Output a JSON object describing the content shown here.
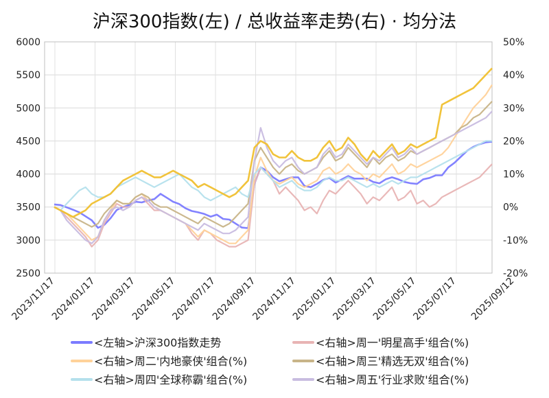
{
  "chart_data": {
    "type": "line",
    "title": "沪深300指数(左)  /  总收益率走势(右) · 均分法",
    "y_left": {
      "min": 2500,
      "max": 6000,
      "ticks": [
        "6000",
        "5500",
        "5000",
        "4500",
        "4000",
        "3500",
        "3000",
        "2500"
      ]
    },
    "y_right": {
      "min": -20,
      "max": 50,
      "ticks": [
        "50%",
        "40%",
        "30%",
        "20%",
        "10%",
        "0%",
        "-10%",
        "-20%"
      ],
      "negative_color": "#22cc22"
    },
    "x_ticks": [
      "2023/11/17",
      "2024/01/17",
      "2024/03/17",
      "2024/05/17",
      "2024/07/17",
      "2024/09/17",
      "2024/11/17",
      "2025/01/17",
      "2025/03/17",
      "2025/05/17",
      "2025/07/17",
      "2025/09/12"
    ],
    "last_tick_color": "#ee2222",
    "grid": true,
    "legend_position": "bottom",
    "series": [
      {
        "name": "<左轴>沪深300指数走势",
        "axis": "left",
        "color": "#7b7bff",
        "values": [
          3540,
          3530,
          3495,
          3460,
          3420,
          3360,
          3300,
          3185,
          3230,
          3330,
          3455,
          3500,
          3530,
          3580,
          3570,
          3600,
          3620,
          3700,
          3640,
          3580,
          3545,
          3480,
          3440,
          3420,
          3395,
          3355,
          3385,
          3320,
          3310,
          3250,
          3190,
          3180,
          3850,
          4100,
          4050,
          3950,
          3890,
          3920,
          3950,
          3950,
          3820,
          3800,
          3850,
          3910,
          3940,
          3870,
          3920,
          3970,
          3930,
          3930,
          3930,
          3880,
          3860,
          3920,
          3950,
          3920,
          3880,
          3860,
          3850,
          3920,
          3940,
          3980,
          3980,
          4100,
          4170,
          4260,
          4350,
          4410,
          4450,
          4480,
          4490
        ]
      },
      {
        "name": "<右轴>周一'明星高手'组合(%)",
        "axis": "right",
        "color": "#e8b4b4",
        "values": [
          0,
          -1,
          -3,
          -5,
          -7,
          -9,
          -12,
          -10,
          -5,
          -2,
          1,
          0,
          0,
          2,
          3,
          1,
          -1,
          -1,
          -2,
          -3,
          -4,
          -5,
          -8,
          -10,
          -7,
          -8,
          -10,
          -11,
          -12,
          -12,
          -11,
          -10,
          7,
          12,
          10,
          8,
          4,
          6,
          4,
          2,
          -1,
          0,
          -2,
          2,
          5,
          4,
          6,
          8,
          6,
          4,
          1,
          3,
          2,
          4,
          6,
          2,
          3,
          5,
          1,
          2,
          0,
          1,
          3,
          4,
          5,
          6,
          7,
          8,
          9,
          11,
          13
        ]
      },
      {
        "name": "<右轴>周二'内地豪侠'组合(%)",
        "axis": "right",
        "color": "#ffd29a",
        "values": [
          0,
          -1,
          -2,
          -4,
          -6,
          -8,
          -10,
          -9,
          -4,
          -1,
          2,
          1,
          1,
          3,
          4,
          2,
          0,
          -1,
          -2,
          -3,
          -4,
          -5,
          -7,
          -9,
          -7,
          -8,
          -9,
          -10,
          -11,
          -11,
          -9,
          -7,
          9,
          15,
          11,
          8,
          7,
          8,
          9,
          7,
          6,
          7,
          8,
          11,
          12,
          10,
          11,
          13,
          11,
          10,
          8,
          10,
          9,
          11,
          13,
          10,
          11,
          13,
          12,
          13,
          14,
          15,
          16,
          18,
          21,
          24,
          27,
          30,
          32,
          34,
          37
        ]
      },
      {
        "name": "<右轴>周三'精选无双'组合(%)",
        "axis": "right",
        "color": "#c8b488",
        "values": [
          0,
          -1,
          -2,
          -3,
          -4,
          -5,
          -6,
          -5,
          -2,
          0,
          2,
          1,
          1,
          3,
          4,
          3,
          1,
          0,
          0,
          -1,
          -2,
          -3,
          -4,
          -5,
          -3,
          -4,
          -5,
          -6,
          -5,
          -3,
          -1,
          1,
          14,
          18,
          15,
          12,
          10,
          12,
          13,
          11,
          10,
          11,
          12,
          15,
          17,
          14,
          15,
          18,
          16,
          14,
          12,
          15,
          13,
          15,
          16,
          14,
          15,
          17,
          16,
          17,
          18,
          19,
          20,
          21,
          22,
          24,
          25,
          27,
          28,
          30,
          32
        ]
      },
      {
        "name": "<右轴>周四'全球称霸'组合(%)",
        "axis": "right",
        "color": "#b4e0ec",
        "values": [
          0,
          -1,
          1,
          3,
          5,
          6,
          4,
          3,
          3,
          4,
          6,
          7,
          8,
          9,
          8,
          7,
          6,
          7,
          8,
          9,
          10,
          8,
          6,
          5,
          3,
          2,
          3,
          4,
          5,
          6,
          4,
          3,
          10,
          12,
          10,
          8,
          6,
          7,
          8,
          6,
          5,
          5,
          6,
          8,
          9,
          8,
          8,
          9,
          8,
          7,
          6,
          7,
          6,
          7,
          8,
          7,
          8,
          9,
          9,
          10,
          11,
          12,
          13,
          14,
          15,
          16,
          17,
          18,
          19,
          20,
          20
        ]
      },
      {
        "name": "<右轴>周五'行业求败'组合(%)",
        "axis": "right",
        "color": "#c8bce0",
        "values": [
          0,
          -1,
          -4,
          -6,
          -8,
          -10,
          -11,
          -9,
          -4,
          -1,
          0,
          -1,
          0,
          2,
          3,
          2,
          0,
          -1,
          -2,
          -3,
          -4,
          -5,
          -6,
          -7,
          -5,
          -6,
          -7,
          -8,
          -8,
          -7,
          -5,
          -3,
          14,
          24,
          18,
          14,
          12,
          14,
          15,
          12,
          10,
          11,
          12,
          16,
          18,
          15,
          16,
          19,
          17,
          15,
          13,
          15,
          14,
          16,
          18,
          15,
          16,
          18,
          16,
          17,
          18,
          19,
          20,
          21,
          22,
          23,
          24,
          25,
          26,
          27,
          29
        ]
      },
      {
        "name": "",
        "axis": "right",
        "color": "#f0c030",
        "values": [
          0,
          -1,
          -2,
          -3,
          -2,
          -1,
          1,
          2,
          3,
          4,
          6,
          8,
          9,
          10,
          11,
          10,
          9,
          9,
          10,
          11,
          10,
          9,
          8,
          6,
          7,
          6,
          5,
          4,
          3,
          4,
          6,
          8,
          18,
          20,
          19,
          16,
          15,
          15,
          17,
          15,
          14,
          14,
          15,
          18,
          20,
          17,
          18,
          21,
          19,
          16,
          14,
          17,
          15,
          17,
          19,
          16,
          17,
          19,
          18,
          19,
          20,
          21,
          31,
          32,
          33,
          34,
          35,
          36,
          38,
          40,
          42
        ]
      }
    ],
    "legend": [
      "<左轴>沪深300指数走势",
      "<右轴>周一'明星高手'组合(%)",
      "<右轴>周二'内地豪侠'组合(%)",
      "<右轴>周三'精选无双'组合(%)",
      "<右轴>周四'全球称霸'组合(%)",
      "<右轴>周五'行业求败'组合(%)"
    ]
  }
}
